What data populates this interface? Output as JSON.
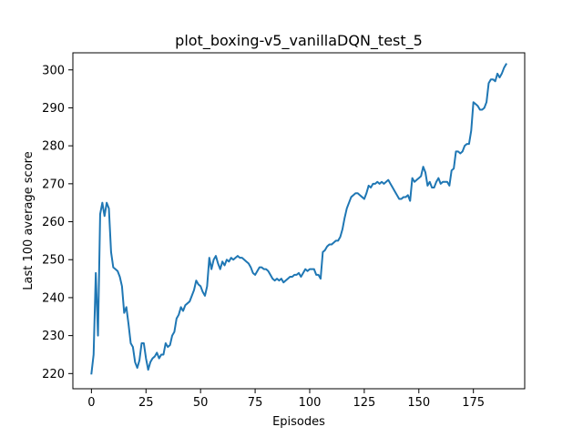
{
  "chart_data": {
    "type": "line",
    "title": "plot_boxing-v5_vanillaDQN_test_5",
    "xlabel": "Episodes",
    "ylabel": "Last 100 average score",
    "xlim": [
      -8.5,
      198.5
    ],
    "ylim": [
      216,
      304.5
    ],
    "xticks": [
      0,
      25,
      50,
      75,
      100,
      125,
      150,
      175
    ],
    "yticks": [
      220,
      230,
      240,
      250,
      260,
      270,
      280,
      290,
      300
    ],
    "grid": false,
    "legend": "none",
    "series": [
      {
        "color": "#1f77b4",
        "points": [
          [
            0,
            220
          ],
          [
            1,
            225
          ],
          [
            2,
            246.5
          ],
          [
            3,
            230
          ],
          [
            4,
            262
          ],
          [
            5,
            265
          ],
          [
            6,
            261.5
          ],
          [
            7,
            265
          ],
          [
            8,
            263.5
          ],
          [
            9,
            252
          ],
          [
            10,
            248
          ],
          [
            11,
            247.5
          ],
          [
            12,
            247
          ],
          [
            13,
            245.5
          ],
          [
            14,
            243
          ],
          [
            15,
            236
          ],
          [
            16,
            237.5
          ],
          [
            17,
            233
          ],
          [
            18,
            228
          ],
          [
            19,
            227
          ],
          [
            20,
            223
          ],
          [
            21,
            221.5
          ],
          [
            22,
            223.5
          ],
          [
            23,
            228
          ],
          [
            24,
            228
          ],
          [
            25,
            224
          ],
          [
            26,
            221
          ],
          [
            27,
            223
          ],
          [
            28,
            224
          ],
          [
            29,
            224.5
          ],
          [
            30,
            225.5
          ],
          [
            31,
            224
          ],
          [
            32,
            225
          ],
          [
            33,
            225
          ],
          [
            34,
            228
          ],
          [
            35,
            227
          ],
          [
            36,
            227.5
          ],
          [
            37,
            230
          ],
          [
            38,
            231
          ],
          [
            39,
            234.5
          ],
          [
            40,
            235.5
          ],
          [
            41,
            237.5
          ],
          [
            42,
            236.5
          ],
          [
            43,
            238
          ],
          [
            44,
            238.5
          ],
          [
            45,
            239
          ],
          [
            46,
            240.5
          ],
          [
            47,
            242
          ],
          [
            48,
            244.5
          ],
          [
            49,
            243.5
          ],
          [
            50,
            243
          ],
          [
            51,
            241.5
          ],
          [
            52,
            240.5
          ],
          [
            53,
            243
          ],
          [
            54,
            250.5
          ],
          [
            55,
            247.5
          ],
          [
            56,
            250
          ],
          [
            57,
            251
          ],
          [
            58,
            249
          ],
          [
            59,
            247.5
          ],
          [
            60,
            249.5
          ],
          [
            61,
            248.5
          ],
          [
            62,
            250
          ],
          [
            63,
            249.5
          ],
          [
            64,
            250.5
          ],
          [
            65,
            250
          ],
          [
            66,
            250.5
          ],
          [
            67,
            251
          ],
          [
            68,
            250.5
          ],
          [
            69,
            250.5
          ],
          [
            70,
            250
          ],
          [
            71,
            249.5
          ],
          [
            72,
            249
          ],
          [
            73,
            248
          ],
          [
            74,
            246.5
          ],
          [
            75,
            246
          ],
          [
            76,
            247
          ],
          [
            77,
            248
          ],
          [
            78,
            248
          ],
          [
            79,
            247.5
          ],
          [
            80,
            247.5
          ],
          [
            81,
            247
          ],
          [
            82,
            246
          ],
          [
            83,
            245
          ],
          [
            84,
            244.5
          ],
          [
            85,
            245
          ],
          [
            86,
            244.5
          ],
          [
            87,
            245
          ],
          [
            88,
            244
          ],
          [
            89,
            244.5
          ],
          [
            90,
            245
          ],
          [
            91,
            245.5
          ],
          [
            92,
            245.5
          ],
          [
            93,
            246
          ],
          [
            94,
            246
          ],
          [
            95,
            246.5
          ],
          [
            96,
            245.5
          ],
          [
            97,
            246.5
          ],
          [
            98,
            247.5
          ],
          [
            99,
            247
          ],
          [
            100,
            247.5
          ],
          [
            101,
            247.5
          ],
          [
            102,
            247.5
          ],
          [
            103,
            246
          ],
          [
            104,
            246
          ],
          [
            105,
            245
          ],
          [
            106,
            252
          ],
          [
            107,
            252.5
          ],
          [
            108,
            253.5
          ],
          [
            109,
            254
          ],
          [
            110,
            254
          ],
          [
            111,
            254.5
          ],
          [
            112,
            255
          ],
          [
            113,
            255
          ],
          [
            114,
            256
          ],
          [
            115,
            258
          ],
          [
            116,
            261
          ],
          [
            117,
            263.5
          ],
          [
            118,
            265
          ],
          [
            119,
            266.5
          ],
          [
            120,
            267
          ],
          [
            121,
            267.5
          ],
          [
            122,
            267.5
          ],
          [
            123,
            267
          ],
          [
            124,
            266.5
          ],
          [
            125,
            266
          ],
          [
            126,
            267.5
          ],
          [
            127,
            269.5
          ],
          [
            128,
            269
          ],
          [
            129,
            270
          ],
          [
            130,
            270
          ],
          [
            131,
            270.5
          ],
          [
            132,
            270
          ],
          [
            133,
            270.5
          ],
          [
            134,
            270
          ],
          [
            135,
            270.5
          ],
          [
            136,
            271
          ],
          [
            137,
            270
          ],
          [
            138,
            269
          ],
          [
            139,
            268
          ],
          [
            140,
            267
          ],
          [
            141,
            266
          ],
          [
            142,
            266
          ],
          [
            143,
            266.5
          ],
          [
            144,
            266.5
          ],
          [
            145,
            267
          ],
          [
            146,
            265.5
          ],
          [
            147,
            271.5
          ],
          [
            148,
            270.5
          ],
          [
            149,
            271
          ],
          [
            150,
            271.5
          ],
          [
            151,
            272
          ],
          [
            152,
            274.5
          ],
          [
            153,
            273
          ],
          [
            154,
            269.5
          ],
          [
            155,
            270.5
          ],
          [
            156,
            269
          ],
          [
            157,
            269
          ],
          [
            158,
            270.5
          ],
          [
            159,
            271.5
          ],
          [
            160,
            270
          ],
          [
            161,
            270.5
          ],
          [
            162,
            270.5
          ],
          [
            163,
            270.5
          ],
          [
            164,
            269.5
          ],
          [
            165,
            273.5
          ],
          [
            166,
            274
          ],
          [
            167,
            278.5
          ],
          [
            168,
            278.5
          ],
          [
            169,
            278
          ],
          [
            170,
            278.5
          ],
          [
            171,
            280
          ],
          [
            172,
            280.5
          ],
          [
            173,
            280.5
          ],
          [
            174,
            284
          ],
          [
            175,
            291.5
          ],
          [
            176,
            291
          ],
          [
            177,
            290.5
          ],
          [
            178,
            289.5
          ],
          [
            179,
            289.5
          ],
          [
            180,
            290
          ],
          [
            181,
            291.5
          ],
          [
            182,
            296.5
          ],
          [
            183,
            297.5
          ],
          [
            184,
            297.5
          ],
          [
            185,
            297
          ],
          [
            186,
            299
          ],
          [
            187,
            298
          ],
          [
            188,
            299
          ],
          [
            189,
            300.5
          ],
          [
            190,
            301.5
          ]
        ]
      }
    ]
  }
}
